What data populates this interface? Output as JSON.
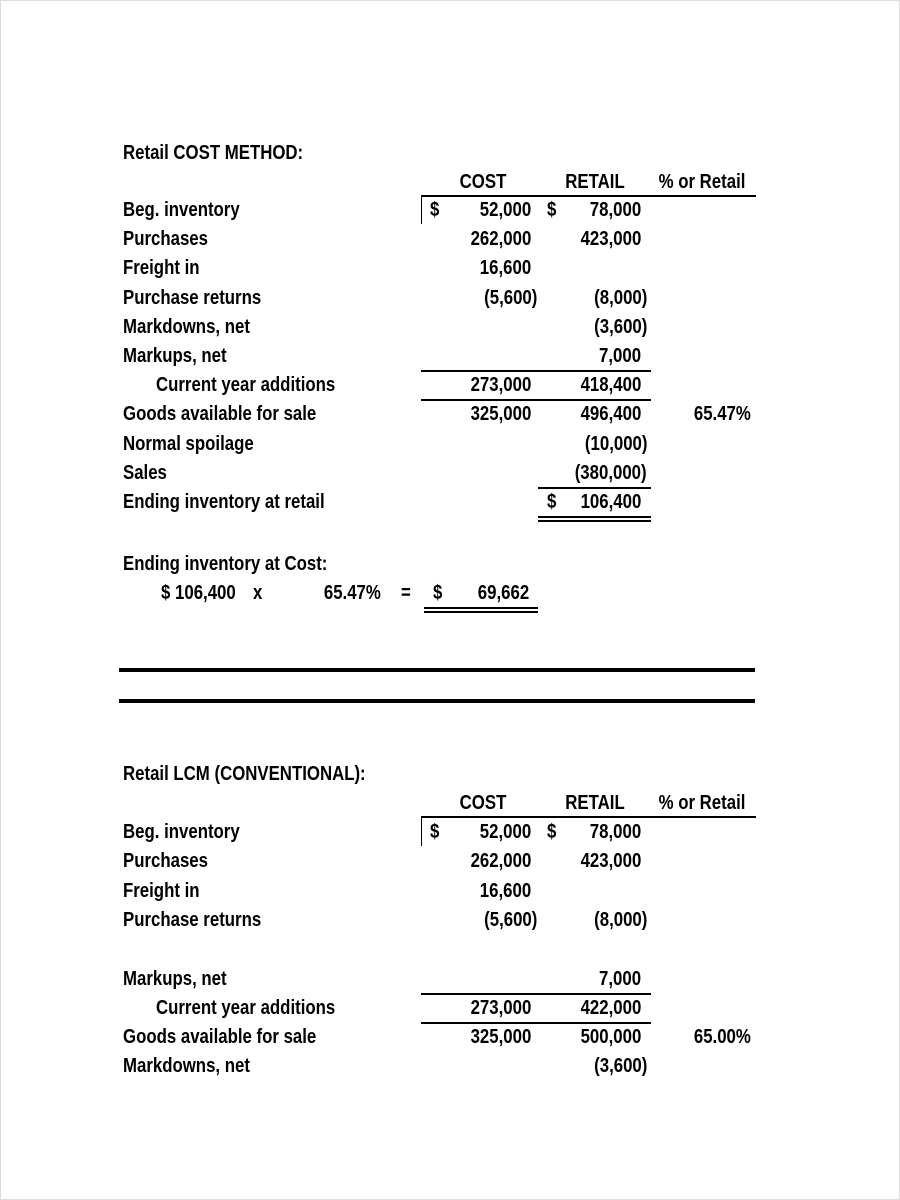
{
  "sections": [
    {
      "title": "Retail COST METHOD:",
      "headers": {
        "cost": "COST",
        "retail": "RETAIL",
        "percent": "% or Retail"
      },
      "rows": [
        {
          "label": "Beg. inventory",
          "cost_symbol": "$",
          "cost": "52,000",
          "retail_symbol": "$",
          "retail": "78,000"
        },
        {
          "label": "Purchases",
          "cost": "262,000",
          "retail": "423,000"
        },
        {
          "label": "Freight in",
          "cost": "16,600"
        },
        {
          "label": "Purchase returns",
          "cost": "(5,600)",
          "retail": "(8,000)"
        },
        {
          "label": "Markdowns, net",
          "retail": "(3,600)"
        },
        {
          "label": "Markups, net",
          "retail": "7,000"
        },
        {
          "label": "Current year additions",
          "cost": "273,000",
          "retail": "418,400"
        },
        {
          "label": "Goods available for sale",
          "cost": "325,000",
          "retail": "496,400",
          "percent": "65.47%"
        },
        {
          "label": "Normal spoilage",
          "retail": "(10,000)"
        },
        {
          "label": "Sales",
          "retail": "(380,000)"
        },
        {
          "label": "Ending inventory at retail",
          "retail_symbol": "$",
          "retail": "106,400"
        }
      ],
      "cost_computation": {
        "title": "Ending inventory at Cost:",
        "retail_amount": "$ 106,400",
        "times": "x",
        "rate": "65.47%",
        "equals": "=",
        "symbol": "$",
        "result": "69,662"
      }
    },
    {
      "title": "Retail LCM (CONVENTIONAL):",
      "headers": {
        "cost": "COST",
        "retail": "RETAIL",
        "percent": "% or Retail"
      },
      "rows": [
        {
          "label": "Beg. inventory",
          "cost_symbol": "$",
          "cost": "52,000",
          "retail_symbol": "$",
          "retail": "78,000"
        },
        {
          "label": "Purchases",
          "cost": "262,000",
          "retail": "423,000"
        },
        {
          "label": "Freight in",
          "cost": "16,600"
        },
        {
          "label": "Purchase returns",
          "cost": "(5,600)",
          "retail": "(8,000)"
        },
        {
          "label": "Markups, net",
          "retail": "7,000"
        },
        {
          "label": "Current year additions",
          "cost": "273,000",
          "retail": "422,000"
        },
        {
          "label": "Goods available for sale",
          "cost": "325,000",
          "retail": "500,000",
          "percent": "65.00%"
        },
        {
          "label": "Markdowns, net",
          "retail": "(3,600)"
        }
      ]
    }
  ]
}
